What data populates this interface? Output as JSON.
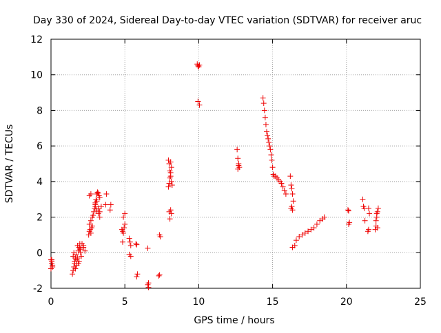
{
  "chart_data": {
    "type": "scatter",
    "title": "Day 330 of 2024, Sidereal Day-to-day VTEC variation (SDTVAR) for receiver aruc",
    "xlabel": "GPS time / hours",
    "ylabel": "SDTVAR / TECUs",
    "xlim": [
      0,
      25
    ],
    "ylim": [
      -2,
      12
    ],
    "xticks": [
      0,
      5,
      10,
      15,
      20,
      25
    ],
    "yticks": [
      -2,
      0,
      2,
      4,
      6,
      8,
      10,
      12
    ],
    "grid": true,
    "marker": "+",
    "color": "#ee0000",
    "series": [
      {
        "name": "SDTVAR",
        "x": [
          0.0,
          0.05,
          0.1,
          0.0,
          0.05,
          0.1,
          0.05,
          1.45,
          1.5,
          1.55,
          1.6,
          1.65,
          1.7,
          1.5,
          1.6,
          1.7,
          1.55,
          1.65,
          1.75,
          1.8,
          1.85,
          1.9,
          1.95,
          2.0,
          2.05,
          1.8,
          1.9,
          2.0,
          1.85,
          1.95,
          2.1,
          2.2,
          2.3,
          2.2,
          2.55,
          2.6,
          2.65,
          2.7,
          2.75,
          2.8,
          2.6,
          2.7,
          2.6,
          2.7,
          2.8,
          2.85,
          2.9,
          2.95,
          3.0,
          3.05,
          3.1,
          3.15,
          3.2,
          3.25,
          3.3,
          3.0,
          3.1,
          3.2,
          3.3,
          3.0,
          3.1,
          3.2,
          3.3,
          3.4,
          3.7,
          3.75,
          4.0,
          4.05,
          4.8,
          4.85,
          4.9,
          4.95,
          5.0,
          4.9,
          5.0,
          4.85,
          5.3,
          5.35,
          5.4,
          5.3,
          5.4,
          5.75,
          5.8,
          5.85,
          5.8,
          6.55,
          6.6,
          6.55,
          6.6,
          7.3,
          7.35,
          7.4,
          7.35,
          7.95,
          8.0,
          8.05,
          8.1,
          8.15,
          8.0,
          8.1,
          7.95,
          8.05,
          8.1,
          8.15,
          8.2,
          8.0,
          8.1,
          8.05,
          8.15,
          9.9,
          9.95,
          10.0,
          10.05,
          9.95,
          10.05,
          12.6,
          12.65,
          12.7,
          12.75,
          12.65,
          12.7,
          14.35,
          14.4,
          14.45,
          14.5,
          14.55,
          14.6,
          14.65,
          14.7,
          14.75,
          14.8,
          14.85,
          14.9,
          14.95,
          15.0,
          15.05,
          15.1,
          15.2,
          15.3,
          15.4,
          15.5,
          15.6,
          15.7,
          15.8,
          15.9,
          16.2,
          16.25,
          16.3,
          16.35,
          16.4,
          16.3,
          16.35,
          16.25,
          16.35,
          16.5,
          16.6,
          16.8,
          17.0,
          17.2,
          17.4,
          17.6,
          17.8,
          18.0,
          18.2,
          18.4,
          18.5,
          20.1,
          20.15,
          20.2,
          20.15,
          21.1,
          21.15,
          21.2,
          21.25,
          21.45,
          21.5,
          21.55,
          21.5,
          21.95,
          22.0,
          22.05,
          22.1,
          22.15,
          22.0,
          22.1,
          22.05
        ],
        "y": [
          -0.4,
          -0.6,
          -0.8,
          -0.9,
          -0.5,
          -0.7,
          -0.4,
          -1.2,
          -1.0,
          -0.8,
          -0.5,
          -0.3,
          -0.1,
          -0.2,
          -0.6,
          -0.4,
          0.0,
          -0.9,
          -0.7,
          -0.3,
          0.1,
          0.3,
          0.5,
          0.2,
          -0.2,
          0.4,
          -0.5,
          0.0,
          -0.6,
          0.2,
          0.5,
          0.3,
          0.1,
          0.4,
          1.0,
          1.2,
          1.3,
          1.1,
          1.4,
          1.5,
          3.2,
          3.3,
          1.6,
          1.8,
          2.0,
          2.1,
          2.3,
          2.5,
          2.8,
          3.0,
          3.3,
          3.4,
          3.35,
          3.2,
          3.1,
          2.6,
          2.4,
          2.2,
          2.0,
          2.7,
          2.9,
          2.5,
          2.3,
          2.6,
          2.7,
          3.3,
          2.4,
          2.7,
          1.3,
          1.2,
          1.1,
          1.4,
          1.6,
          2.0,
          2.2,
          0.6,
          0.8,
          0.6,
          0.4,
          -0.1,
          -0.2,
          0.5,
          0.45,
          -1.2,
          -1.35,
          -1.8,
          -1.95,
          0.25,
          -1.7,
          -1.3,
          1.0,
          0.9,
          -1.25,
          3.7,
          3.9,
          4.2,
          4.5,
          4.8,
          5.0,
          5.1,
          5.2,
          4.6,
          4.3,
          4.0,
          3.8,
          2.3,
          2.4,
          1.9,
          2.2,
          10.6,
          10.5,
          10.45,
          10.55,
          8.5,
          8.3,
          5.8,
          5.3,
          5.0,
          4.8,
          4.7,
          4.9,
          8.7,
          8.4,
          8.0,
          7.6,
          7.2,
          6.8,
          6.6,
          6.4,
          6.2,
          6.0,
          5.8,
          5.5,
          5.2,
          4.8,
          4.4,
          4.3,
          4.3,
          4.2,
          4.1,
          4.0,
          3.9,
          3.7,
          3.5,
          3.3,
          4.3,
          3.8,
          3.6,
          3.3,
          2.9,
          2.6,
          2.4,
          2.5,
          0.3,
          0.4,
          0.7,
          0.9,
          1.0,
          1.1,
          1.2,
          1.3,
          1.4,
          1.6,
          1.8,
          1.9,
          2.0,
          2.4,
          2.35,
          1.7,
          1.6,
          3.0,
          2.6,
          2.5,
          1.8,
          1.2,
          1.3,
          2.2,
          2.5,
          1.3,
          1.5,
          2.0,
          2.3,
          2.5,
          1.8,
          1.4,
          2.2
        ]
      }
    ]
  }
}
